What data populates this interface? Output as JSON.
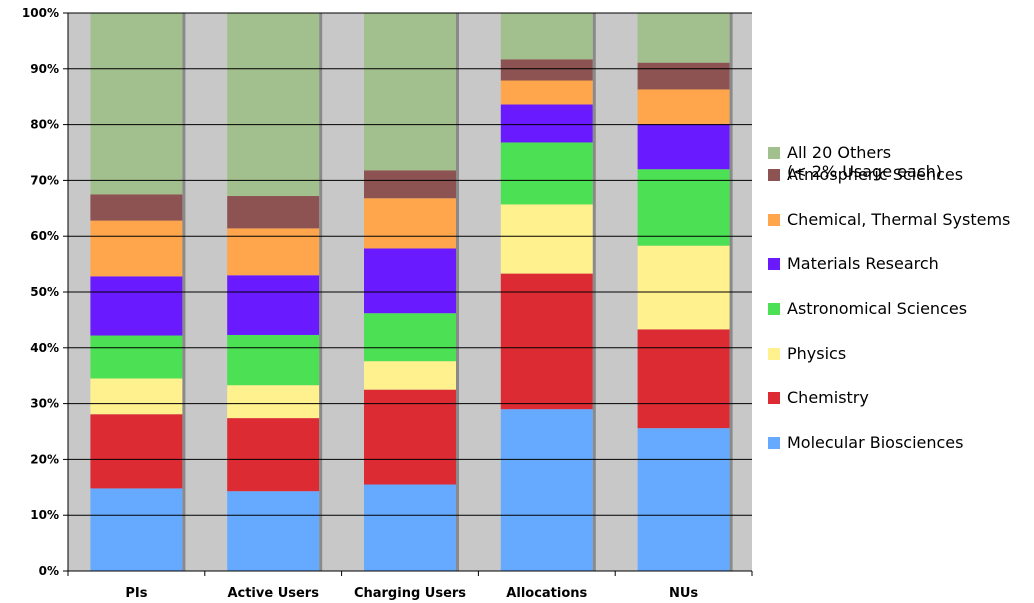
{
  "chart_data": {
    "type": "bar",
    "stacked": true,
    "title": "",
    "xlabel": "",
    "ylabel": "",
    "ylim": [
      0,
      100
    ],
    "yticks": [
      "0%",
      "10%",
      "20%",
      "30%",
      "40%",
      "50%",
      "60%",
      "70%",
      "80%",
      "90%",
      "100%"
    ],
    "categories": [
      "PIs",
      "Active Users",
      "Charging Users",
      "Allocations",
      "NUs"
    ],
    "legend_position": "right",
    "series": [
      {
        "name": "Molecular Biosciences",
        "color": "#66aaff",
        "values": [
          14.8,
          14.3,
          15.5,
          29.0,
          25.6
        ]
      },
      {
        "name": "Chemistry",
        "color": "#dd2b33",
        "values": [
          13.3,
          13.1,
          17.0,
          24.3,
          17.7
        ]
      },
      {
        "name": "Physics",
        "color": "#fff28e",
        "values": [
          6.4,
          5.9,
          5.1,
          12.4,
          15.0
        ]
      },
      {
        "name": "Astronomical Sciences",
        "color": "#4ce154",
        "values": [
          7.7,
          9.0,
          8.6,
          11.1,
          13.7
        ]
      },
      {
        "name": "Materials Research",
        "color": "#6a1aff",
        "values": [
          10.6,
          10.7,
          11.6,
          6.8,
          8.1
        ]
      },
      {
        "name": "Chemical, Thermal Systems",
        "color": "#ffa64d",
        "values": [
          10.0,
          8.4,
          9.0,
          4.3,
          6.2
        ]
      },
      {
        "name": "Atmospheric Sciences",
        "color": "#8d5252",
        "values": [
          4.7,
          5.8,
          5.0,
          3.8,
          4.8
        ]
      },
      {
        "name": "All 20 Others\n(< 2% Usage each)",
        "color": "#a2c08e",
        "values": [
          32.5,
          32.8,
          28.2,
          8.3,
          8.9
        ]
      }
    ]
  },
  "legend_order": [
    7,
    6,
    5,
    4,
    3,
    2,
    1,
    0
  ]
}
